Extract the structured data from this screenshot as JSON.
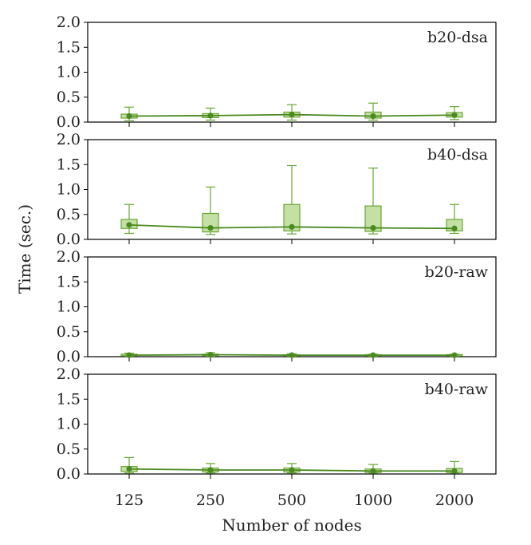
{
  "chart_data": {
    "type": "box",
    "xlabel": "Number of nodes",
    "ylabel": "Time (sec.)",
    "categories": [
      "125",
      "250",
      "500",
      "1000",
      "2000"
    ],
    "ylim": [
      0,
      2.0
    ],
    "yticks": [
      "0.0",
      "0.5",
      "1.0",
      "1.5",
      "2.0"
    ],
    "colors": {
      "line": "#4a8a1e",
      "box_fill": "#c5e0a5",
      "box_edge": "#6aa636"
    },
    "panels": [
      {
        "label": "b20-dsa",
        "median": [
          0.12,
          0.13,
          0.15,
          0.12,
          0.14
        ],
        "q1": [
          0.08,
          0.09,
          0.1,
          0.08,
          0.1
        ],
        "q3": [
          0.16,
          0.17,
          0.2,
          0.2,
          0.19
        ],
        "whisker_low": [
          0.03,
          0.04,
          0.04,
          0.04,
          0.05
        ],
        "whisker_high": [
          0.3,
          0.28,
          0.35,
          0.38,
          0.31
        ]
      },
      {
        "label": "b40-dsa",
        "median": [
          0.29,
          0.23,
          0.25,
          0.23,
          0.22
        ],
        "q1": [
          0.22,
          0.15,
          0.17,
          0.16,
          0.17
        ],
        "q3": [
          0.4,
          0.52,
          0.7,
          0.67,
          0.4
        ],
        "whisker_low": [
          0.12,
          0.1,
          0.11,
          0.11,
          0.12
        ],
        "whisker_high": [
          0.7,
          1.05,
          1.48,
          1.43,
          0.7
        ]
      },
      {
        "label": "b20-raw",
        "median": [
          0.03,
          0.04,
          0.03,
          0.03,
          0.03
        ],
        "q1": [
          0.02,
          0.02,
          0.02,
          0.02,
          0.02
        ],
        "q3": [
          0.05,
          0.05,
          0.04,
          0.04,
          0.04
        ],
        "whisker_low": [
          0.01,
          0.01,
          0.01,
          0.01,
          0.01
        ],
        "whisker_high": [
          0.07,
          0.08,
          0.06,
          0.05,
          0.05
        ]
      },
      {
        "label": "b40-raw",
        "median": [
          0.1,
          0.08,
          0.08,
          0.06,
          0.06
        ],
        "q1": [
          0.05,
          0.04,
          0.04,
          0.03,
          0.03
        ],
        "q3": [
          0.15,
          0.12,
          0.12,
          0.1,
          0.11
        ],
        "whisker_low": [
          0.02,
          0.02,
          0.02,
          0.02,
          0.02
        ],
        "whisker_high": [
          0.33,
          0.21,
          0.21,
          0.19,
          0.25
        ]
      }
    ]
  }
}
